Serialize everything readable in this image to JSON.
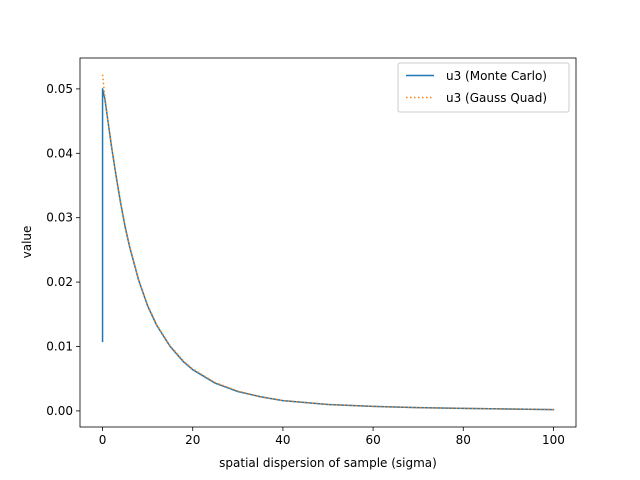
{
  "chart_data": {
    "type": "line",
    "title": "",
    "xlabel": "spatial dispersion of sample (sigma)",
    "ylabel": "value",
    "xlim": [
      -5,
      105
    ],
    "ylim": [
      -0.0025,
      0.0548
    ],
    "xticks": [
      0,
      20,
      40,
      60,
      80,
      100
    ],
    "xtick_labels": [
      "0",
      "20",
      "40",
      "60",
      "80",
      "100"
    ],
    "yticks": [
      0.0,
      0.01,
      0.02,
      0.03,
      0.04,
      0.05
    ],
    "ytick_labels": [
      "0.00",
      "0.01",
      "0.02",
      "0.03",
      "0.04",
      "0.05"
    ],
    "grid": false,
    "legend_position": "top-right",
    "series": [
      {
        "name": "u3 (Monte Carlo)",
        "color": "#1f77b4",
        "style": "solid",
        "x": [
          0,
          0,
          0.5,
          1,
          2,
          3,
          4,
          5,
          6,
          8,
          10,
          12,
          15,
          18,
          20,
          25,
          30,
          35,
          40,
          50,
          60,
          70,
          80,
          90,
          100
        ],
        "y": [
          0.0108,
          0.05,
          0.0485,
          0.046,
          0.041,
          0.0365,
          0.0323,
          0.0286,
          0.0255,
          0.0203,
          0.0163,
          0.0133,
          0.01,
          0.0076,
          0.0064,
          0.0043,
          0.003,
          0.0022,
          0.0016,
          0.001,
          0.0007,
          0.0005,
          0.0004,
          0.0003,
          0.0002
        ]
      },
      {
        "name": "u3 (Gauss Quad)",
        "color": "#ff7f0e",
        "style": "dotted",
        "x": [
          0,
          0.5,
          1,
          2,
          3,
          4,
          5,
          6,
          8,
          10,
          12,
          15,
          18,
          20,
          25,
          30,
          35,
          40,
          50,
          60,
          70,
          80,
          90,
          100
        ],
        "y": [
          0.0522,
          0.0488,
          0.0461,
          0.0411,
          0.0366,
          0.0324,
          0.0287,
          0.0256,
          0.0204,
          0.0164,
          0.0134,
          0.0101,
          0.0077,
          0.0065,
          0.0044,
          0.0031,
          0.0022,
          0.0016,
          0.001,
          0.0007,
          0.0005,
          0.0004,
          0.0003,
          0.0002
        ]
      }
    ]
  }
}
